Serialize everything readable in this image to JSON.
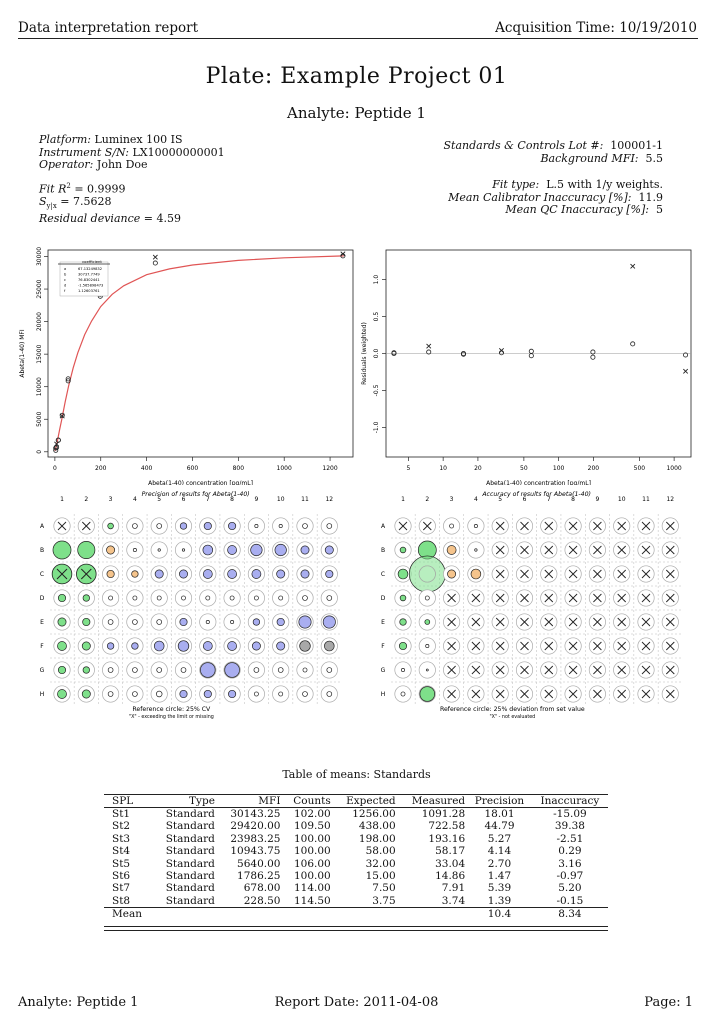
{
  "header": {
    "left": "Data interpretation report",
    "right": "Acquisition Time: 10/19/2010"
  },
  "title": "Plate: Example Project 01",
  "subtitle": "Analyte: Peptide 1",
  "meta_left": [
    {
      "label": "Platform:",
      "value": "Luminex 100 IS"
    },
    {
      "label": "Instrument S/N:",
      "value": "LX10000000001"
    },
    {
      "label": "Operator:",
      "value": "John Doe"
    }
  ],
  "fit_stats": [
    {
      "label": "Fit R",
      "sup": "2",
      "value": " = 0.9999"
    },
    {
      "label": "S",
      "sub": "y|x",
      "value": " = 7.5628"
    },
    {
      "label": "Residual deviance",
      "value": " = 4.59"
    }
  ],
  "meta_right": [
    {
      "label": "Standards & Controls Lot #:",
      "value": "100001-1"
    },
    {
      "label": "Background MFI:",
      "value": "5.5"
    },
    {
      "label": "Fit type:",
      "value": "L.5 with 1/y weights."
    },
    {
      "label": "Mean Calibrator Inaccuracy [%]:",
      "value": "11.9"
    },
    {
      "label": "Mean QC Inaccuracy [%]:",
      "value": "5"
    }
  ],
  "curve_chart": {
    "type": "scatter",
    "xlabel": "Abeta(1-40) concentration [pg/mL]",
    "ylabel": "Abeta(1-40) MFI",
    "xlim": [
      -30,
      1300
    ],
    "ylim": [
      -800,
      31000
    ],
    "x_ticks": [
      0,
      200,
      400,
      600,
      800,
      1000,
      1200
    ],
    "y_ticks": [
      0,
      5000,
      10000,
      15000,
      20000,
      25000,
      30000
    ],
    "legend_title": "coefficient",
    "legend": [
      {
        "k": "a",
        "v": "67.13249832"
      },
      {
        "k": "b",
        "v": "30737.7749"
      },
      {
        "k": "c",
        "v": "76.8302441"
      },
      {
        "k": "d",
        "v": "-1.565898473"
      },
      {
        "k": "f",
        "v": "1.12603761"
      }
    ],
    "points": [
      {
        "x": 3.75,
        "y": 230,
        "m": "o"
      },
      {
        "x": 3.75,
        "y": 580,
        "m": "o"
      },
      {
        "x": 7.5,
        "y": 680,
        "m": "o"
      },
      {
        "x": 7.5,
        "y": 1200,
        "m": "x"
      },
      {
        "x": 15,
        "y": 1780,
        "m": "o"
      },
      {
        "x": 15,
        "y": 1800,
        "m": "o"
      },
      {
        "x": 32,
        "y": 5600,
        "m": "o"
      },
      {
        "x": 32,
        "y": 5500,
        "m": "x"
      },
      {
        "x": 58,
        "y": 10900,
        "m": "o"
      },
      {
        "x": 58,
        "y": 11200,
        "m": "o"
      },
      {
        "x": 198,
        "y": 23900,
        "m": "o"
      },
      {
        "x": 198,
        "y": 24200,
        "m": "o"
      },
      {
        "x": 438,
        "y": 29000,
        "m": "o"
      },
      {
        "x": 438,
        "y": 29900,
        "m": "x"
      },
      {
        "x": 1256,
        "y": 30100,
        "m": "o"
      },
      {
        "x": 1256,
        "y": 30400,
        "m": "x"
      }
    ],
    "curve": [
      [
        0,
        120
      ],
      [
        5,
        700
      ],
      [
        10,
        1500
      ],
      [
        20,
        3300
      ],
      [
        30,
        5000
      ],
      [
        45,
        7700
      ],
      [
        60,
        10100
      ],
      [
        80,
        12900
      ],
      [
        100,
        15200
      ],
      [
        130,
        18000
      ],
      [
        160,
        20100
      ],
      [
        200,
        22300
      ],
      [
        250,
        24200
      ],
      [
        300,
        25500
      ],
      [
        400,
        27200
      ],
      [
        500,
        28100
      ],
      [
        600,
        28700
      ],
      [
        800,
        29400
      ],
      [
        1000,
        29800
      ],
      [
        1260,
        30100
      ]
    ]
  },
  "residual_chart": {
    "type": "scatter",
    "xlabel": "Abeta(1-40) concentration [pg/mL]",
    "ylabel": "Residuals (weighted)",
    "x_log": true,
    "xlim": [
      3.2,
      1400
    ],
    "ylim": [
      -1.4,
      1.4
    ],
    "x_ticks": [
      5,
      10,
      20,
      50,
      100,
      200,
      500,
      1000
    ],
    "y_ticks": [
      -1.0,
      -0.5,
      0.0,
      0.5,
      1.0
    ],
    "points": [
      {
        "x": 3.75,
        "y": 0.0,
        "m": "o"
      },
      {
        "x": 3.75,
        "y": 0.01,
        "m": "o"
      },
      {
        "x": 7.5,
        "y": 0.02,
        "m": "o"
      },
      {
        "x": 7.5,
        "y": 0.1,
        "m": "x"
      },
      {
        "x": 15,
        "y": -0.01,
        "m": "o"
      },
      {
        "x": 15,
        "y": 0.0,
        "m": "o"
      },
      {
        "x": 32,
        "y": 0.01,
        "m": "o"
      },
      {
        "x": 32,
        "y": 0.04,
        "m": "x"
      },
      {
        "x": 58,
        "y": -0.03,
        "m": "o"
      },
      {
        "x": 58,
        "y": 0.03,
        "m": "o"
      },
      {
        "x": 198,
        "y": -0.05,
        "m": "o"
      },
      {
        "x": 198,
        "y": 0.02,
        "m": "o"
      },
      {
        "x": 438,
        "y": 0.13,
        "m": "o"
      },
      {
        "x": 438,
        "y": 1.18,
        "m": "x"
      },
      {
        "x": 1256,
        "y": -0.02,
        "m": "o"
      },
      {
        "x": 1256,
        "y": -0.24,
        "m": "x"
      }
    ]
  },
  "precision_plate": {
    "title": "Precision of results for Abeta(1-40)",
    "caption": "Reference circle: 25% CV",
    "note": "\"X\" - exceeding the limit or missing",
    "cols": [
      "1",
      "2",
      "3",
      "4",
      "5",
      "6",
      "7",
      "8",
      "9",
      "10",
      "11",
      "12"
    ],
    "rows": [
      "A",
      "B",
      "C",
      "D",
      "E",
      "F",
      "G",
      "H"
    ],
    "grid": [
      [
        "X",
        "X",
        "g.35",
        "n.3",
        "n.3",
        "b.4",
        "b.45",
        "b.45",
        "n.2",
        "n.2",
        "n.3",
        "n.3"
      ],
      [
        "g1.1",
        "g1.05",
        "o.5",
        "n.2",
        "n.15",
        "n.15",
        "b.6",
        "b.55",
        "b.7",
        "b.7",
        "b.5",
        "b.5"
      ],
      [
        "GX",
        "GX",
        "o.45",
        "o.4",
        "b.5",
        "b.5",
        "b.55",
        "b.55",
        "b.55",
        "b.5",
        "b.5",
        "b.45"
      ],
      [
        "g.45",
        "g.4",
        "n.25",
        "n.25",
        "n.25",
        "n.25",
        "n.25",
        "n.25",
        "n.25",
        "n.25",
        "n.3",
        "n.3"
      ],
      [
        "g.5",
        "g.45",
        "n.3",
        "n.3",
        "n.3",
        "b.45",
        "n.2",
        "n.2",
        "b.4",
        "b.45",
        "b.75",
        "b.75"
      ],
      [
        "g.55",
        "g.5",
        "b.4",
        "b.4",
        "b.6",
        "b.65",
        "b.55",
        "b.55",
        "b.5",
        "b.5",
        "k.65",
        "k.6"
      ],
      [
        "g.45",
        "g.4",
        "n.3",
        "n.3",
        "n.3",
        "n.3",
        "b.9",
        "b.9",
        "n.3",
        "n.3",
        "n.25",
        "n.3"
      ],
      [
        "g.55",
        "g.5",
        "n.3",
        "n.3",
        "n.35",
        "b.45",
        "b.45",
        "b.45",
        "n.25",
        "n.25",
        "n.3",
        "n.3"
      ]
    ]
  },
  "accuracy_plate": {
    "title": "Accuracy of results for Abeta(1-40)",
    "caption": "Reference circle: 25% deviation from set value",
    "note": "\"X\" - not evaluated",
    "cols": [
      "1",
      "2",
      "3",
      "4",
      "5",
      "6",
      "7",
      "8",
      "9",
      "10",
      "11",
      "12"
    ],
    "rows": [
      "A",
      "B",
      "C",
      "D",
      "E",
      "F",
      "G",
      "H"
    ],
    "grid": [
      [
        "X",
        "X",
        "n.25",
        "n.2",
        "X",
        "X",
        "X",
        "X",
        "X",
        "X",
        "X",
        "X"
      ],
      [
        "g.35",
        "g1.1",
        "o.55",
        "n.15",
        "X",
        "X",
        "X",
        "X",
        "X",
        "X",
        "X",
        "X"
      ],
      [
        "g.6",
        "G2.2",
        "o.5",
        "o.6",
        "X",
        "X",
        "X",
        "X",
        "X",
        "X",
        "X",
        "X"
      ],
      [
        "g.35",
        "n.25",
        "X",
        "X",
        "X",
        "X",
        "X",
        "X",
        "X",
        "X",
        "X",
        "X"
      ],
      [
        "g.4",
        "g.3",
        "X",
        "X",
        "X",
        "X",
        "X",
        "X",
        "X",
        "X",
        "X",
        "X"
      ],
      [
        "g.45",
        "n.2",
        "X",
        "X",
        "X",
        "X",
        "X",
        "X",
        "X",
        "X",
        "X",
        "X"
      ],
      [
        "n.2",
        "n.1",
        "X",
        "X",
        "X",
        "X",
        "X",
        "X",
        "X",
        "X",
        "X",
        "X"
      ],
      [
        "n.25",
        "g.9",
        "X",
        "X",
        "X",
        "X",
        "X",
        "X",
        "X",
        "X",
        "X",
        "X"
      ]
    ]
  },
  "means_table": {
    "title": "Table of means: Standards",
    "columns": [
      "SPL",
      "Type",
      "MFI",
      "Counts",
      "Expected",
      "Measured",
      "Precision",
      "Inaccuracy"
    ],
    "rows": [
      [
        "St1",
        "Standard",
        "30143.25",
        "102.00",
        "1256.00",
        "1091.28",
        "18.01",
        "-15.09"
      ],
      [
        "St2",
        "Standard",
        "29420.00",
        "109.50",
        "438.00",
        "722.58",
        "44.79",
        "39.38"
      ],
      [
        "St3",
        "Standard",
        "23983.25",
        "100.00",
        "198.00",
        "193.16",
        "5.27",
        "-2.51"
      ],
      [
        "St4",
        "Standard",
        "10943.75",
        "100.00",
        "58.00",
        "58.17",
        "4.14",
        "0.29"
      ],
      [
        "St5",
        "Standard",
        "5640.00",
        "106.00",
        "32.00",
        "33.04",
        "2.70",
        "3.16"
      ],
      [
        "St6",
        "Standard",
        "1786.25",
        "100.00",
        "15.00",
        "14.86",
        "1.47",
        "-0.97"
      ],
      [
        "St7",
        "Standard",
        "678.00",
        "114.00",
        "7.50",
        "7.91",
        "5.39",
        "5.20"
      ],
      [
        "St8",
        "Standard",
        "228.50",
        "114.50",
        "3.75",
        "3.74",
        "1.39",
        "-0.15"
      ]
    ],
    "mean_row": [
      "Mean",
      "",
      "",
      "",
      "",
      "",
      "10.4",
      "8.34"
    ]
  },
  "footer": {
    "left": "Analyte: Peptide 1",
    "center": "Report Date: 2011-04-08",
    "right": "Page: 1"
  },
  "colors": {
    "green": "#7ee08a",
    "blue": "#a9aef0",
    "orange": "#f5c48c",
    "grey": "#a8a8a8",
    "curve": "#e05555"
  }
}
